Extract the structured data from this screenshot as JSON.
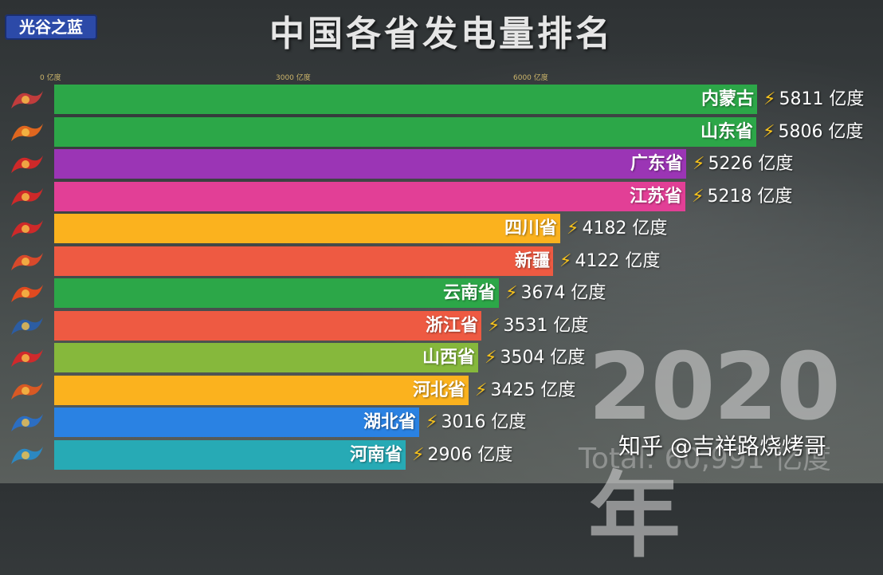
{
  "header": {
    "logo_text": "光谷之蓝",
    "title": "中国各省发电量排名"
  },
  "axis_ticks": [
    "0 亿度",
    "3000 亿度",
    "6000 亿度"
  ],
  "year_label": "2020年",
  "total_label": "Total: 60,991 亿度",
  "watermark": "知乎 @吉祥路烧烤哥",
  "unit": "亿度",
  "chart_data": {
    "type": "bar",
    "title": "中国各省发电量排名",
    "orientation": "horizontal",
    "year": "2020年",
    "unit": "亿度",
    "xlim": [
      0,
      5811
    ],
    "categories": [
      "内蒙古",
      "山东省",
      "广东省",
      "江苏省",
      "四川省",
      "新疆",
      "云南省",
      "浙江省",
      "山西省",
      "河北省",
      "湖北省",
      "河南省"
    ],
    "values": [
      5811,
      5806,
      5226,
      5218,
      4182,
      4122,
      3674,
      3531,
      3504,
      3425,
      3016,
      2906
    ],
    "colors": [
      "#2ca748",
      "#2ca748",
      "#9b35b5",
      "#e23f96",
      "#fbb21e",
      "#ee5a42",
      "#2ca748",
      "#ee5a42",
      "#86b83c",
      "#fbb21e",
      "#2a82e3",
      "#27aab5"
    ],
    "icons": [
      "inner-mongolia-tv-logo",
      "shandong-tv-logo",
      "guangdong-tv-logo",
      "jiangsu-tv-logo",
      "sichuan-tv-logo",
      "xinjiang-tv-logo",
      "yunnan-tv-logo",
      "zhejiang-tv-logo",
      "shanxi-tv-logo",
      "hebei-tv-logo",
      "hubei-tv-logo",
      "henan-tv-logo"
    ]
  }
}
